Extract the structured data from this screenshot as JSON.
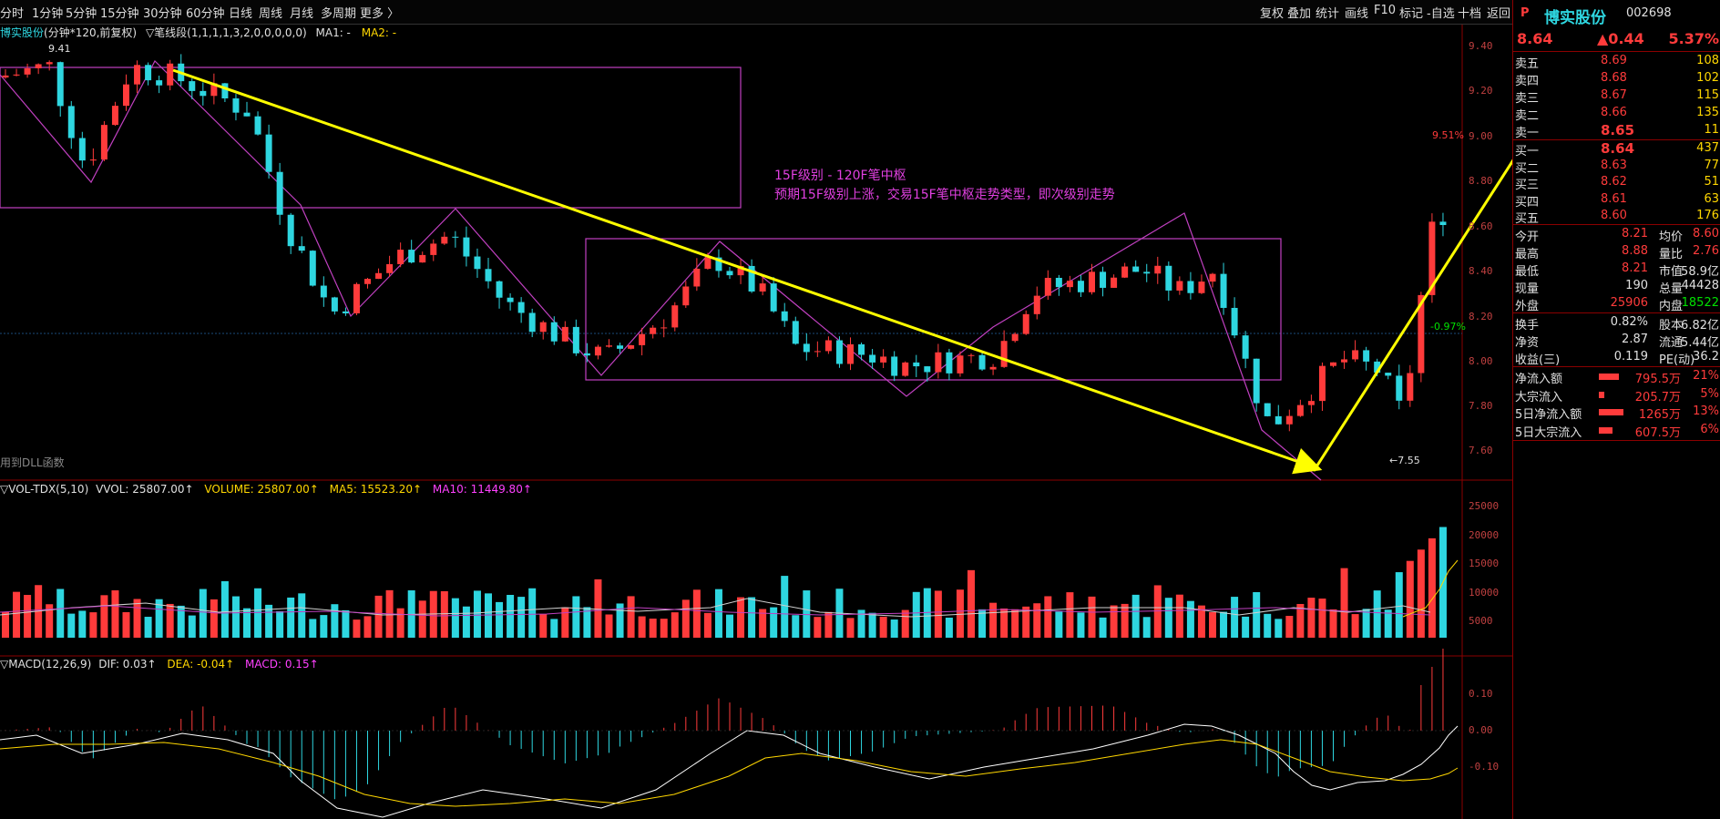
{
  "toolbar": {
    "left_items": [
      "分时",
      "1分钟",
      "5分钟",
      "15分钟",
      "30分钟",
      "60分钟",
      "日线",
      "周线",
      "月线",
      "多周期",
      "更多 〉"
    ],
    "right_items": [
      "复权",
      "叠加",
      "统计",
      "画线",
      "F10",
      "标记",
      "-自选",
      "十档",
      "返回"
    ]
  },
  "main_chart": {
    "header_name": "博实股份",
    "header_period": "(分钟*120,前复权)",
    "header_indicator": "▽笔线段(1,1,1,1,3,2,0,0,0,0,0)",
    "ma1": "MA1: -",
    "ma2": "MA2: -",
    "high_marker": "9.41",
    "low_marker": "←7.55",
    "pct_upper": "9.51%",
    "pct_lower": "-0.97%",
    "annotation_line1": "15F级别 - 120F笔中枢",
    "annotation_line2": "预期15F级别上涨，交易15F笔中枢走势类型，即次级别走势",
    "dll_text": "用到DLL函数",
    "y_ticks": [
      "9.40",
      "9.20",
      "9.00",
      "8.80",
      "8.60",
      "8.40",
      "8.20",
      "8.00",
      "7.80",
      "7.60"
    ]
  },
  "volume_panel": {
    "name": "▽VOL-TDX(5,10)",
    "vvol": "VVOL: 25807.00↑",
    "volume": "VOLUME: 25807.00↑",
    "ma5": "MA5: 15523.20↑",
    "ma10": "MA10: 11449.80↑",
    "y_ticks": [
      "25000",
      "20000",
      "15000",
      "10000",
      "5000"
    ]
  },
  "macd_panel": {
    "name": "▽MACD(12,26,9)",
    "dif": "DIF: 0.03↑",
    "dea": "DEA: -0.04↑",
    "macd": "MACD: 0.15↑",
    "y_ticks": [
      "0.10",
      "0.00",
      "-0.10"
    ]
  },
  "quote": {
    "p_icon": "P",
    "name": "博实股份",
    "code": "002698",
    "price": "8.64",
    "change": "▲0.44",
    "change_pct": "5.37%",
    "asks": [
      {
        "label": "卖五",
        "price": "8.69",
        "vol": "108"
      },
      {
        "label": "卖四",
        "price": "8.68",
        "vol": "102"
      },
      {
        "label": "卖三",
        "price": "8.67",
        "vol": "115"
      },
      {
        "label": "卖二",
        "price": "8.66",
        "vol": "135"
      },
      {
        "label": "卖一",
        "price": "8.65",
        "vol": "11"
      }
    ],
    "bids": [
      {
        "label": "买一",
        "price": "8.64",
        "vol": "437"
      },
      {
        "label": "买二",
        "price": "8.63",
        "vol": "77"
      },
      {
        "label": "买三",
        "price": "8.62",
        "vol": "51"
      },
      {
        "label": "买四",
        "price": "8.61",
        "vol": "63"
      },
      {
        "label": "买五",
        "price": "8.60",
        "vol": "176"
      }
    ],
    "stats": [
      {
        "l1": "今开",
        "v1": "8.21",
        "l2": "均价",
        "v2": "8.60"
      },
      {
        "l1": "最高",
        "v1": "8.88",
        "l2": "量比",
        "v2": "2.76"
      },
      {
        "l1": "最低",
        "v1": "8.21",
        "l2": "市值",
        "v2": "58.9亿"
      },
      {
        "l1": "现量",
        "v1": "190",
        "l2": "总量",
        "v2": "44428"
      },
      {
        "l1": "外盘",
        "v1": "25906",
        "l2": "内盘",
        "v2": "18522"
      }
    ],
    "stats2": [
      {
        "l1": "换手",
        "v1": "0.82%",
        "l2": "股本",
        "v2": "6.82亿"
      },
      {
        "l1": "净资",
        "v1": "2.87",
        "l2": "流通",
        "v2": "5.44亿"
      },
      {
        "l1": "收益(三)",
        "v1": "0.119",
        "l2": "PE(动)",
        "v2": "36.2"
      }
    ],
    "flows": [
      {
        "label": "净流入额",
        "value": "795.5万",
        "pct": "21%",
        "fill": 0.7
      },
      {
        "label": "大宗流入",
        "value": "205.7万",
        "pct": "5%",
        "fill": 0.15
      },
      {
        "label": "5日净流入额",
        "value": "1265万",
        "pct": "13%",
        "fill": 0.9
      },
      {
        "label": "5日大宗流入",
        "value": "607.5万",
        "pct": "6%",
        "fill": 0.45
      }
    ]
  },
  "colors": {
    "up": "#ff3b3b",
    "down": "#2ed6e0",
    "box": "#c040c0",
    "arrow": "#ffff00"
  }
}
